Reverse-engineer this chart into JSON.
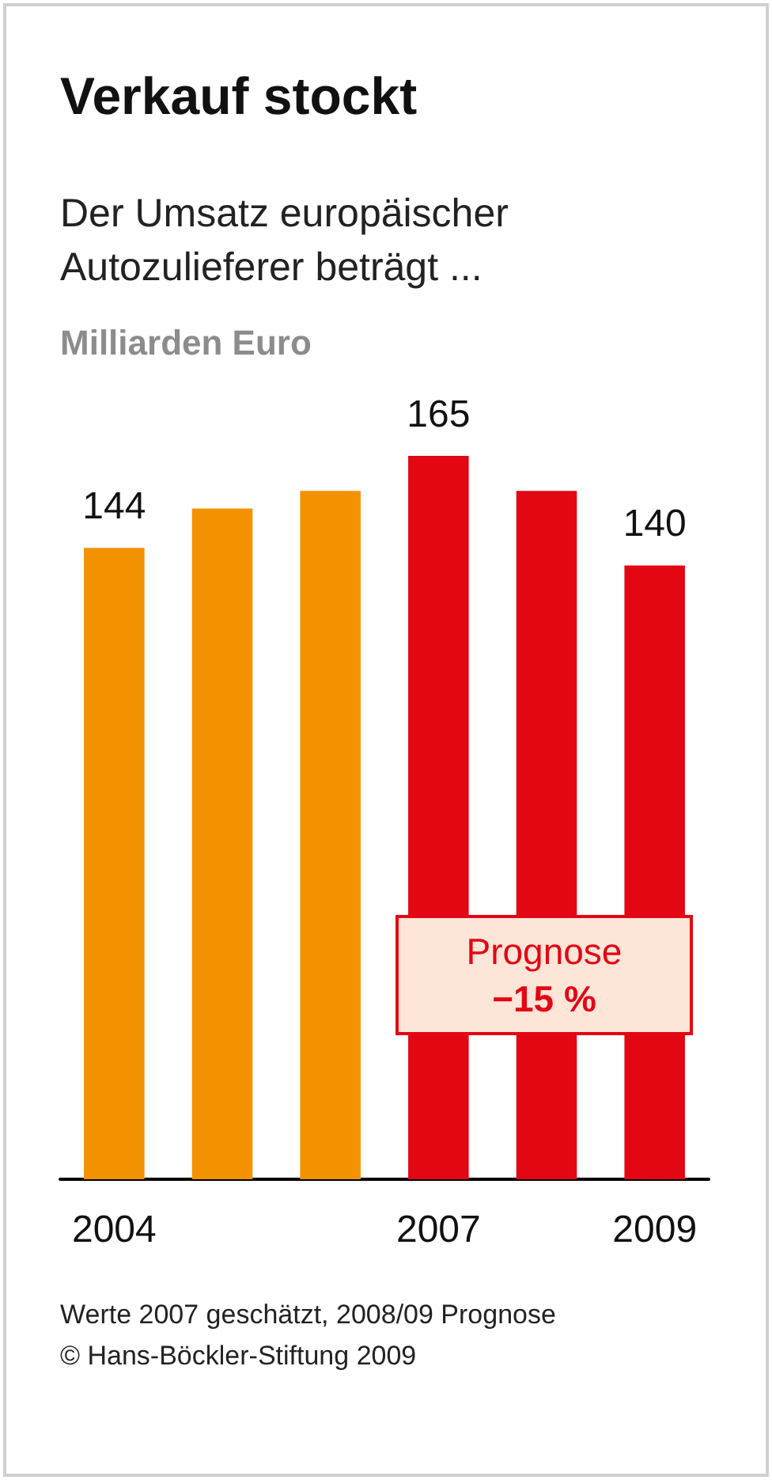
{
  "chart_data": {
    "type": "bar",
    "title": "Verkauf stockt",
    "subtitle": "Der Umsatz europäischer Autozulieferer beträgt ...",
    "ylabel": "Milliarden Euro",
    "categories": [
      "2004",
      null,
      null,
      "2007",
      null,
      "2009"
    ],
    "values": [
      144,
      153,
      157,
      165,
      157,
      140
    ],
    "colors": [
      "#f39200",
      "#f39200",
      "#f39200",
      "#e30613",
      "#e30613",
      "#e30613"
    ],
    "value_labels": [
      "144",
      null,
      null,
      "165",
      null,
      "140"
    ],
    "annotations": [
      "Prognose",
      "−15 %",
      "Werte 2007 geschätzt, 2008/09 Prognose",
      "© Hans-Böckler-Stiftung 2009"
    ]
  }
}
